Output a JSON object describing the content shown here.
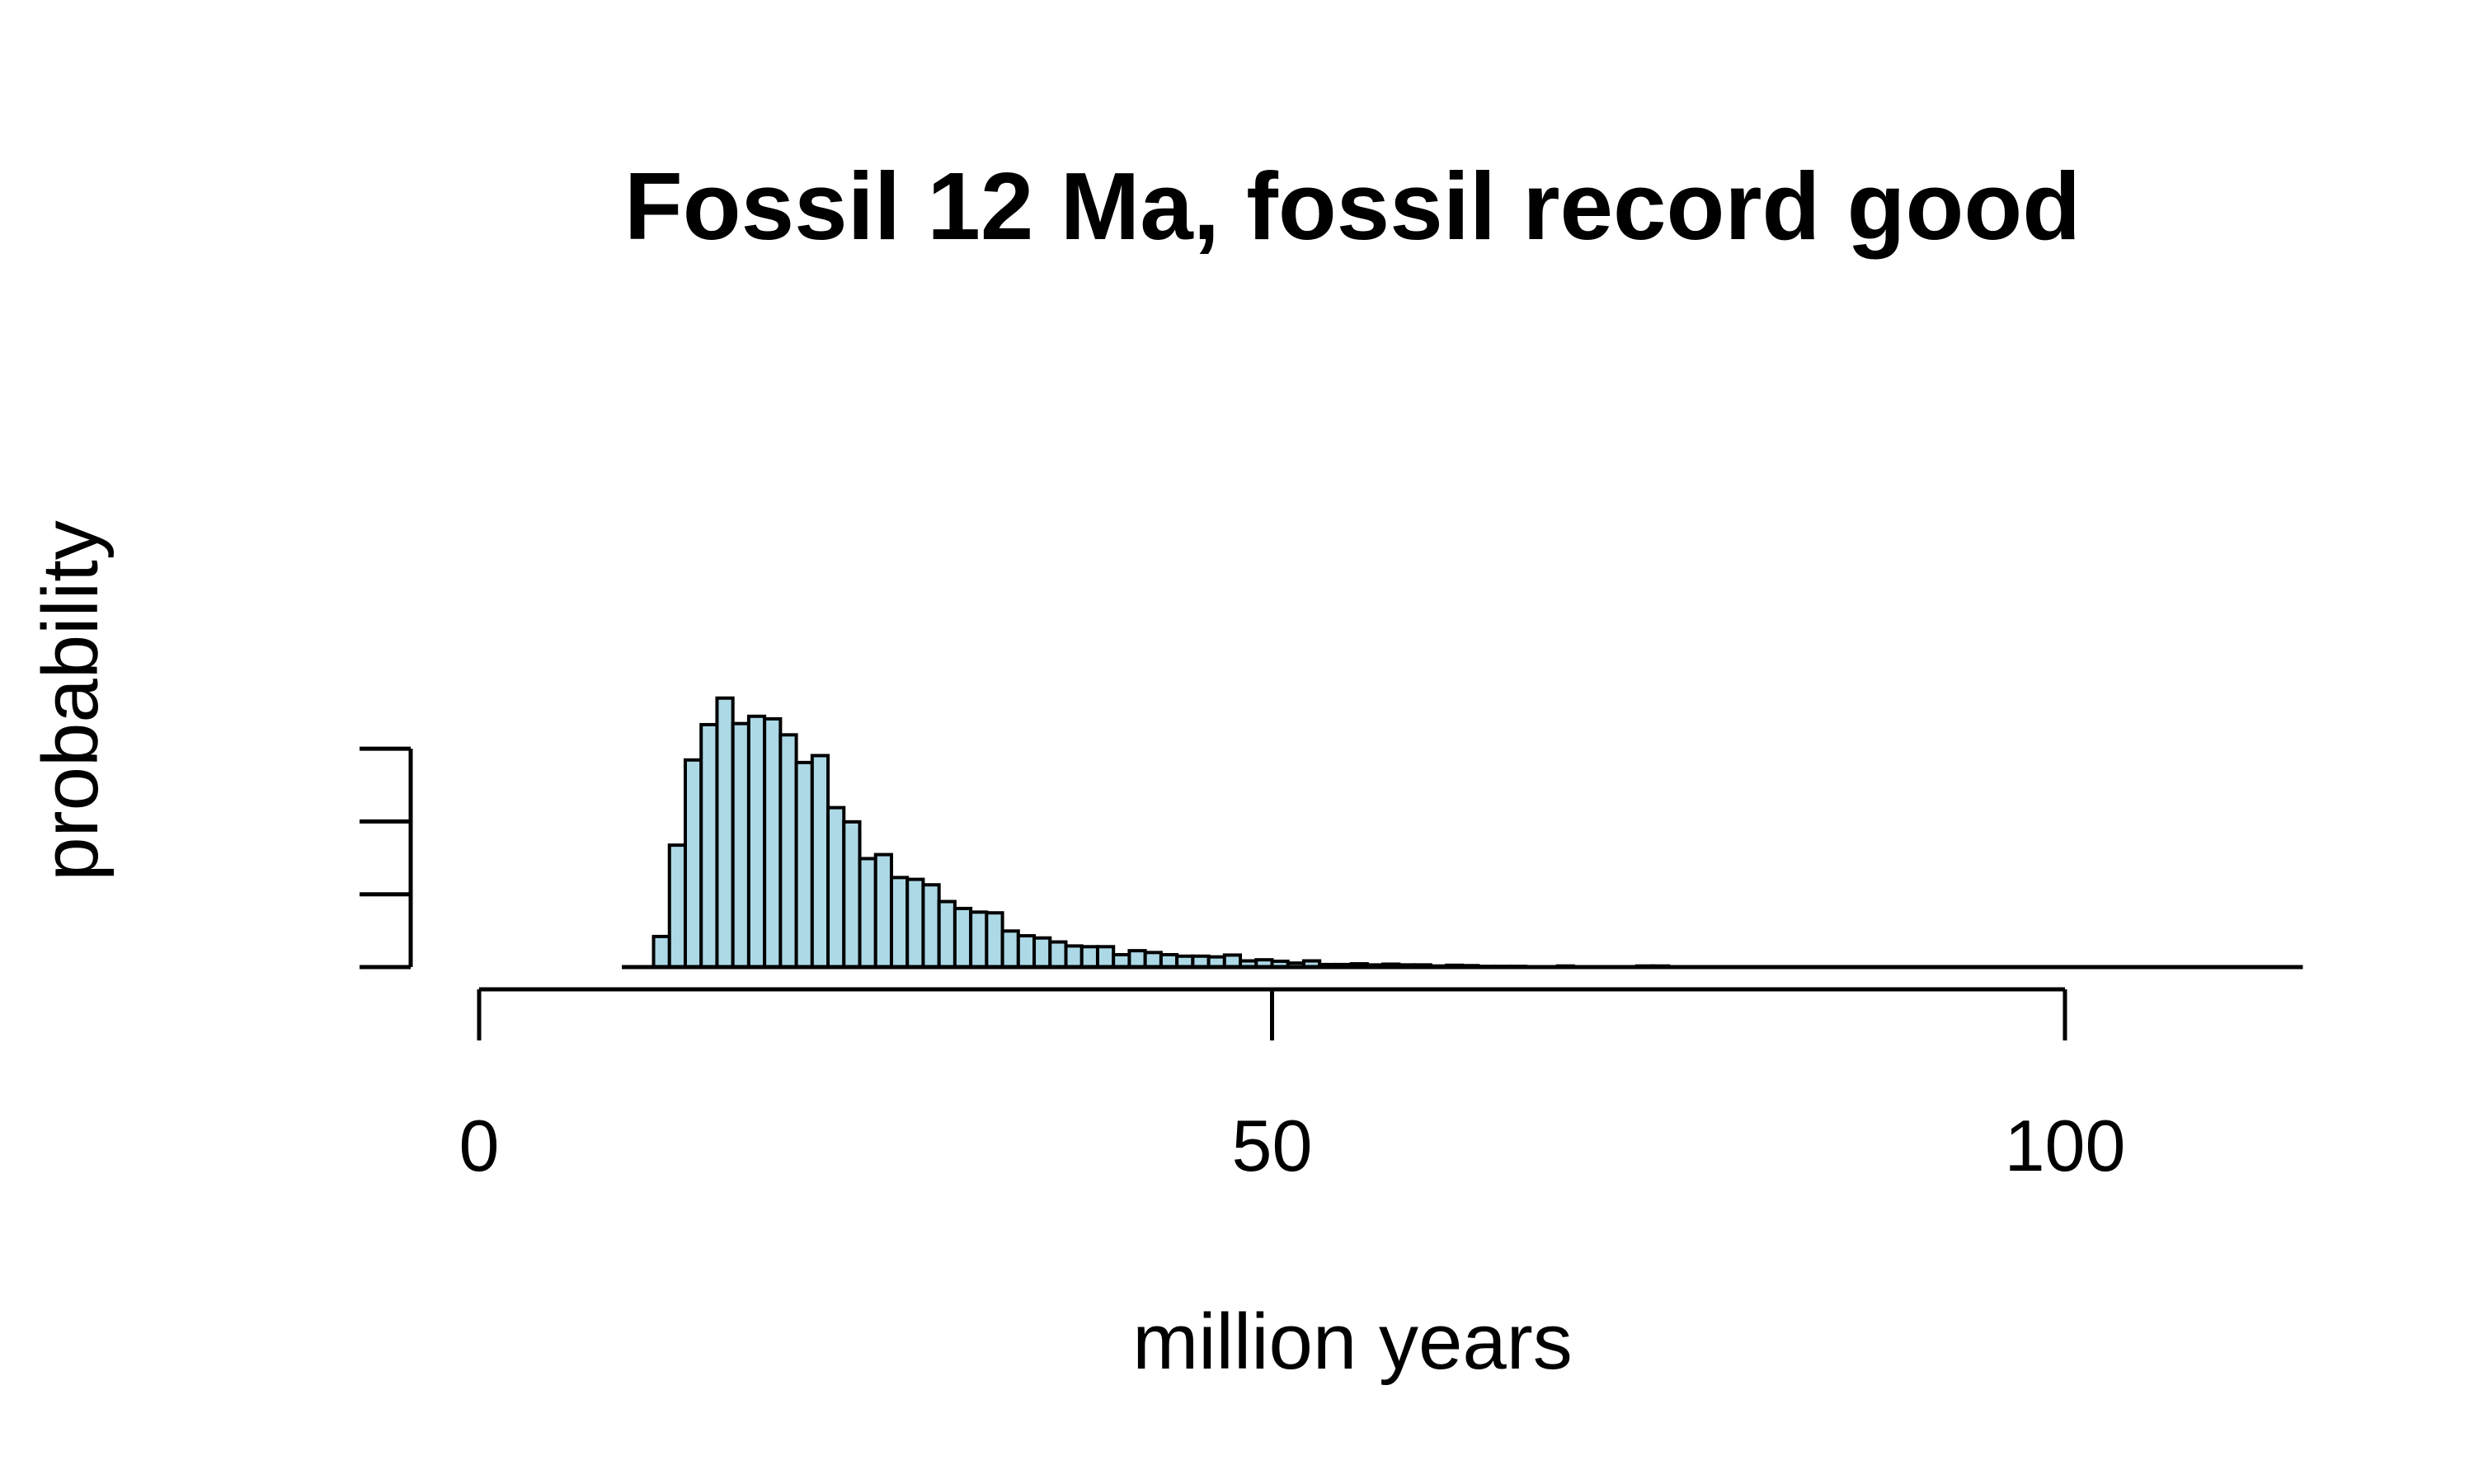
{
  "chart_data": {
    "type": "bar",
    "title": "Fossil 12 Ma, fossil record good",
    "xlabel": "million years",
    "ylabel": "probability",
    "xlim": [
      0,
      115
    ],
    "xticks": [
      0,
      50,
      100
    ],
    "xtick_labels": [
      "0",
      "50",
      "100"
    ],
    "yticks": [
      0,
      0.02,
      0.04,
      0.06
    ],
    "ylim": [
      0,
      0.074
    ],
    "y_tick_labels_shown": false,
    "grid": false,
    "bar_color": "#add8e6",
    "bar_edge_color": "#000000",
    "bin_width": 1,
    "bin_start": 11,
    "values": [
      0.0084,
      0.0335,
      0.0569,
      0.0666,
      0.0739,
      0.0669,
      0.0689,
      0.0682,
      0.0638,
      0.0562,
      0.0581,
      0.0438,
      0.0399,
      0.0298,
      0.0309,
      0.0246,
      0.0241,
      0.0226,
      0.018,
      0.0161,
      0.0151,
      0.0149,
      0.0099,
      0.0086,
      0.008,
      0.0069,
      0.0058,
      0.0056,
      0.0056,
      0.0034,
      0.0045,
      0.004,
      0.0034,
      0.003,
      0.003,
      0.0028,
      0.0033,
      0.0017,
      0.002,
      0.0016,
      0.0011,
      0.0017,
      0.0007,
      0.0007,
      0.0009,
      0.0006,
      0.0008,
      0.0006,
      0.0006,
      0.0003,
      0.0005,
      0.0004,
      0.0002,
      0.0002,
      0.0002,
      0.0001,
      0.0001,
      0.0003,
      0.0001,
      0.0001,
      0.0001,
      0.0001,
      0.0003,
      0.0003,
      0.0001,
      0.0001,
      0.0,
      0.0,
      0.0001,
      0.0,
      0.0,
      0.0001,
      0.0001,
      0.0,
      0.0,
      0.0,
      0.0,
      0.0001,
      0.0,
      0.0,
      0.0001,
      0.0,
      0.0,
      0.0,
      0.0,
      0.0001,
      0.0,
      0.0,
      0.0,
      0.0,
      0.0,
      0.0001,
      0.0,
      0.0,
      0.0,
      0.0,
      0.0,
      0.0,
      0.0,
      0.0001,
      0.0,
      0.0,
      0.0001,
      0.0
    ]
  }
}
